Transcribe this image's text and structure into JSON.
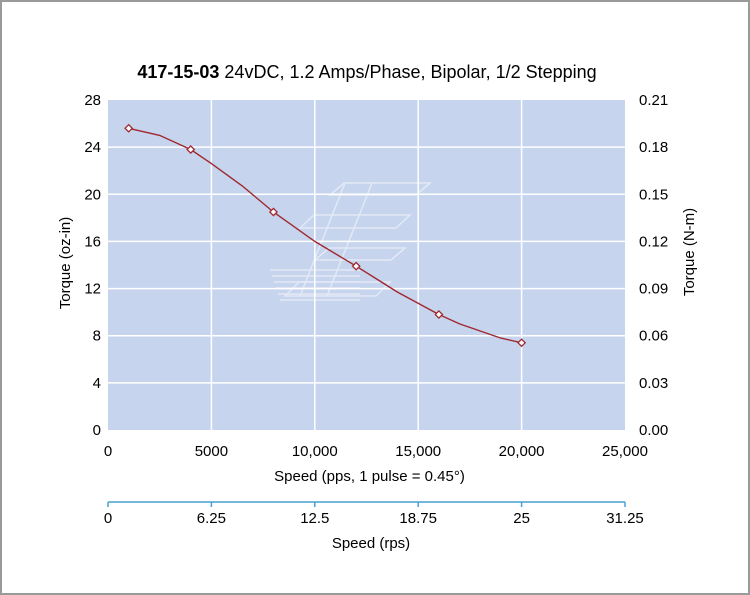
{
  "chart_data": {
    "type": "line",
    "title_part_number": "417-15-03",
    "title_rest": "24vDC, 1.2 Amps/Phase, Bipolar, 1/2 Stepping",
    "xlabel": "Speed (pps, 1 pulse = 0.45°)",
    "ylabel": "Torque (oz-in)",
    "y2label": "Torque (N-m)",
    "x2label": "Speed (rps)",
    "xlim": [
      0,
      25000
    ],
    "ylim": [
      0,
      28
    ],
    "y2lim": [
      0,
      0.21
    ],
    "x2lim": [
      0,
      31.25
    ],
    "x_ticks": [
      "0",
      "5000",
      "10,000",
      "15,000",
      "20,000",
      "25,000"
    ],
    "y_ticks": [
      "0",
      "4",
      "8",
      "12",
      "16",
      "20",
      "24",
      "28"
    ],
    "y2_ticks": [
      "0.00",
      "0.03",
      "0.06",
      "0.09",
      "0.12",
      "0.15",
      "0.18",
      "0.21"
    ],
    "x2_ticks": [
      "0",
      "6.25",
      "12.5",
      "18.75",
      "25",
      "31.25"
    ],
    "grid": true,
    "series": [
      {
        "color": "#a0282e",
        "curve_x": [
          1000,
          2500,
          4000,
          5000,
          6500,
          8000,
          10000,
          12000,
          14000,
          16000,
          17000,
          18000,
          19000,
          20000
        ],
        "curve_y": [
          25.6,
          25.0,
          23.8,
          22.6,
          20.7,
          18.5,
          16.0,
          13.9,
          11.7,
          9.8,
          9.0,
          8.4,
          7.8,
          7.4
        ],
        "marker_x": [
          1000,
          4000,
          8000,
          12000,
          16000,
          20000
        ],
        "marker_y": [
          25.6,
          23.8,
          18.5,
          13.9,
          9.8,
          7.4
        ]
      }
    ],
    "colors": {
      "plot_bg": "#c6d4ee",
      "grid": "#ffffff",
      "rps_axis": "#4a9fd4",
      "line": "#a0282e"
    }
  }
}
